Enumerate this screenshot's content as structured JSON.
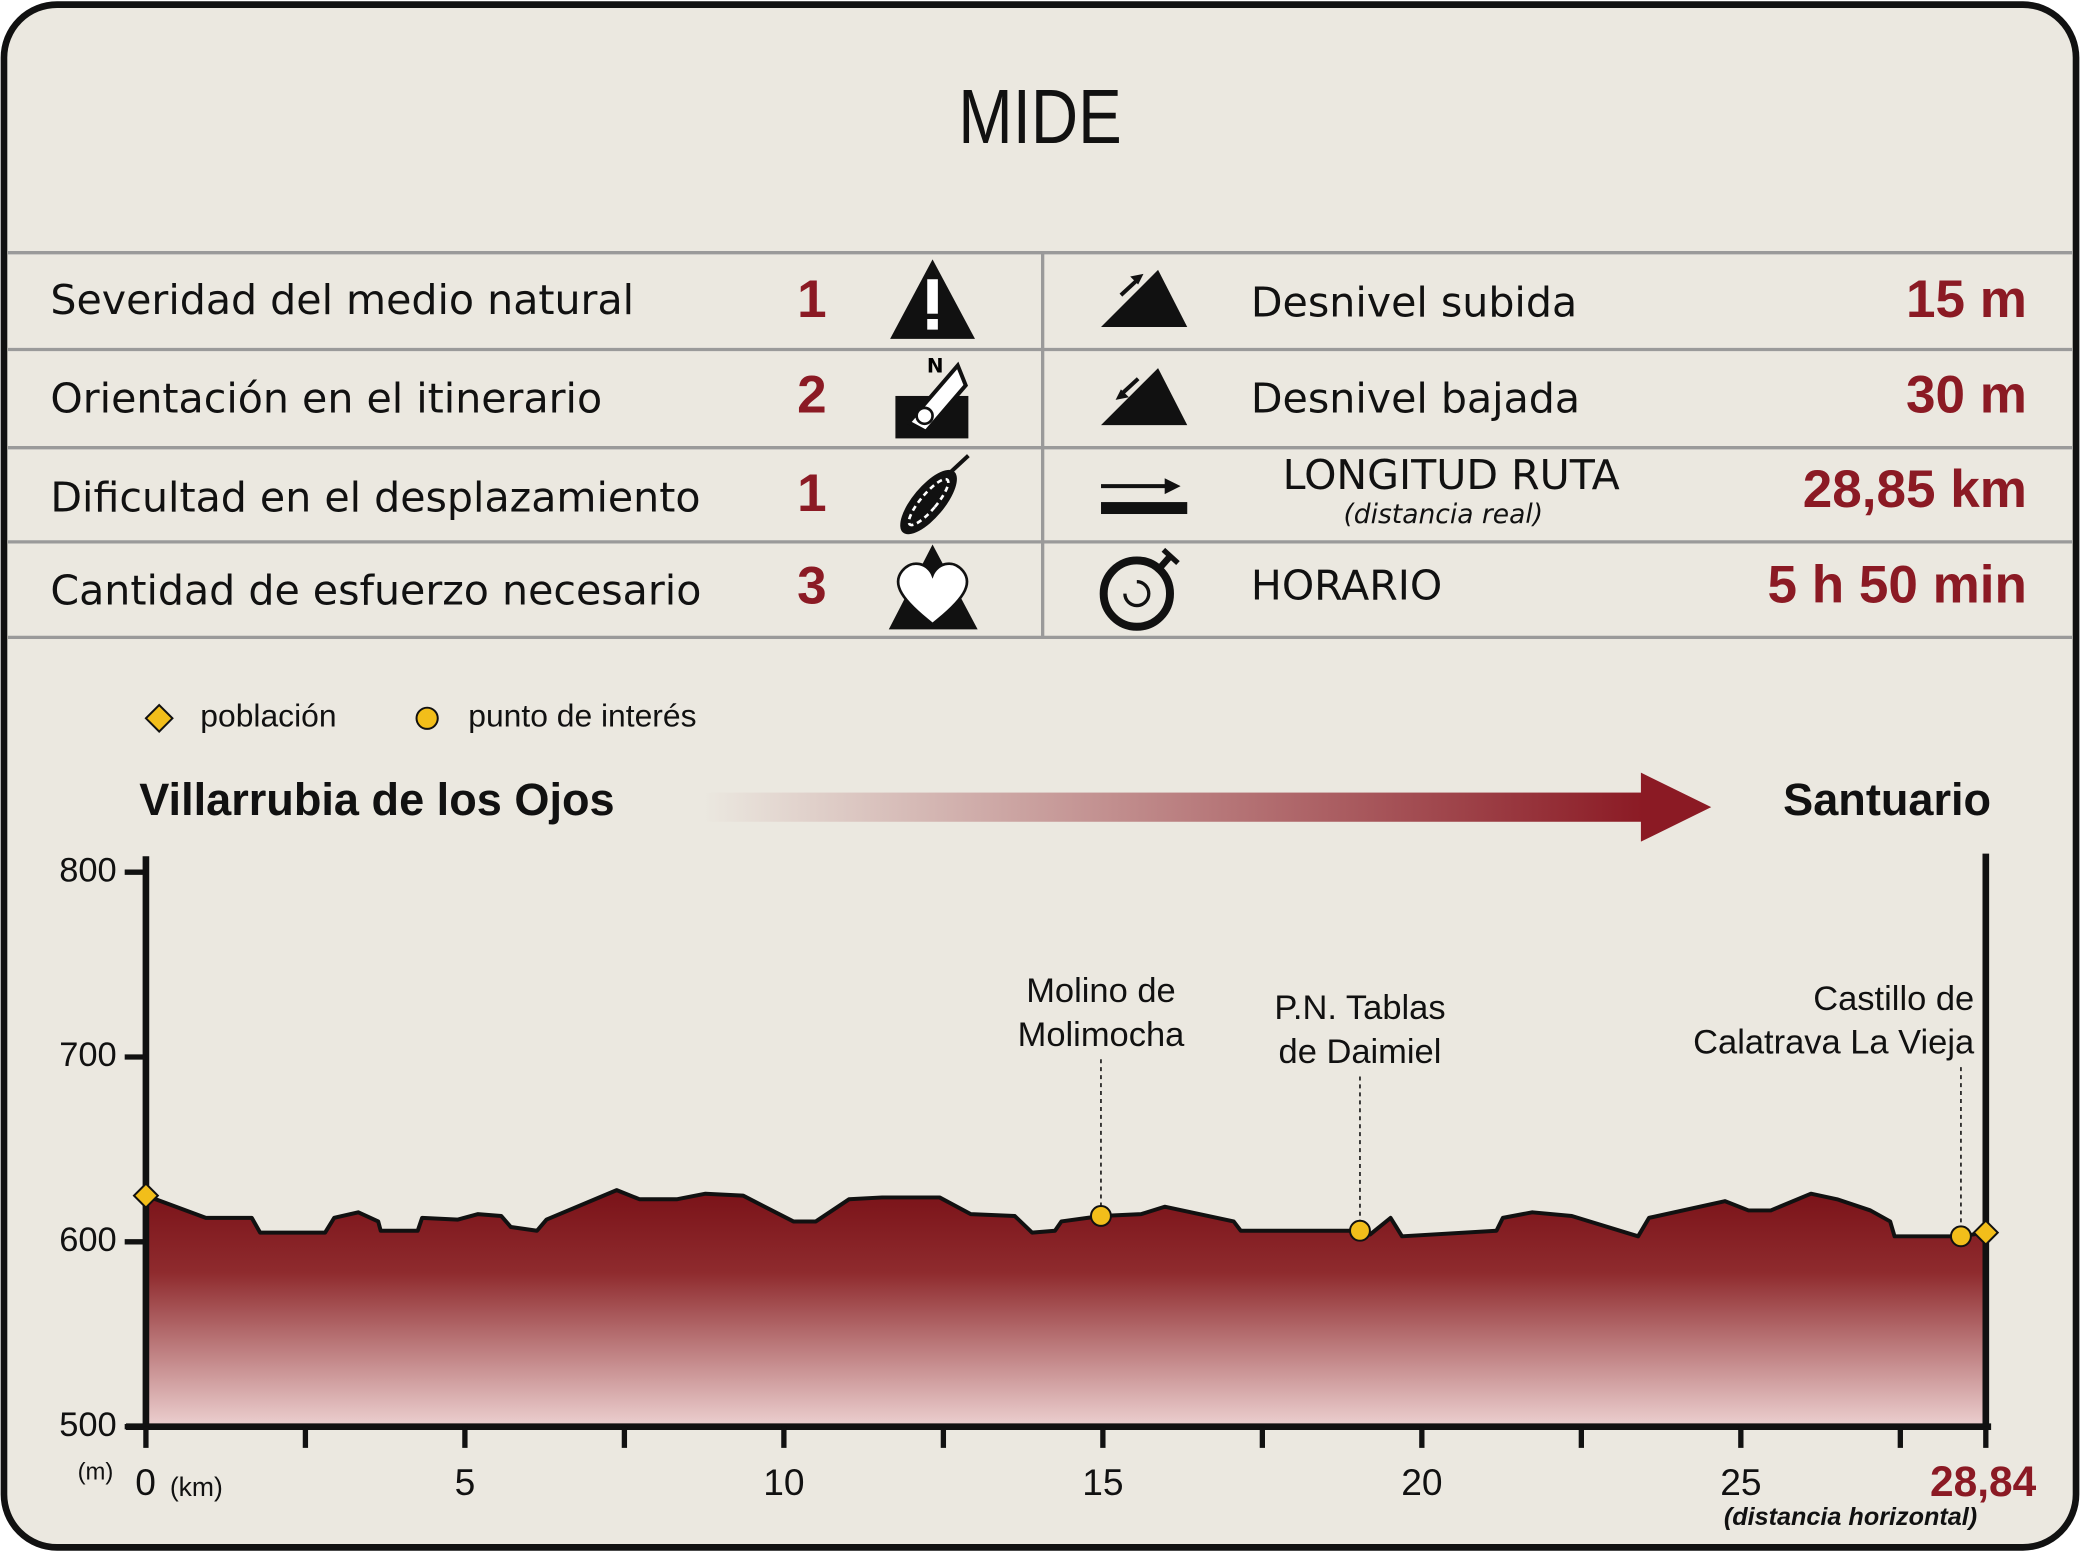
{
  "title": "MIDE",
  "mide": [
    {
      "label": "Severidad del medio natural",
      "value": 1
    },
    {
      "label": "Orientación en el itinerario",
      "value": 2
    },
    {
      "label": "Dificultad en el desplazamiento",
      "value": 1
    },
    {
      "label": "Cantidad de esfuerzo necesario",
      "value": 3
    }
  ],
  "stats": [
    {
      "label": "Desnivel subida",
      "value": "15 m"
    },
    {
      "label": "Desnivel bajada",
      "value": "30 m"
    },
    {
      "label": "LONGITUD RUTA",
      "note": "(distancia real)",
      "value": "28,85 km"
    },
    {
      "label": "HORARIO",
      "value": "5 h 50 min"
    }
  ],
  "chart_data": {
    "type": "area",
    "legend": [
      {
        "label": "población",
        "marker": "diamond"
      },
      {
        "label": "punto de interés",
        "marker": "circle"
      }
    ],
    "start": "Villarrubia de los Ojos",
    "end": "Santuario",
    "y_unit": "(m)",
    "x_unit": "(km)",
    "x_note": "(distancia horizontal)",
    "color": "#8b1a24",
    "marker_color": "#f2be1a",
    "x": [
      0,
      0.94,
      1.66,
      1.79,
      2.81,
      2.95,
      3.33,
      3.64,
      3.68,
      4.26,
      4.33,
      4.89,
      5.2,
      5.57,
      5.72,
      6.13,
      6.28,
      7.38,
      7.74,
      8.32,
      8.77,
      9.36,
      10.15,
      10.5,
      11.02,
      11.54,
      12.44,
      12.93,
      13.62,
      13.89,
      14.25,
      14.35,
      14.97,
      15.6,
      15.97,
      17.05,
      17.16,
      19.03,
      19.19,
      19.51,
      19.69,
      21.17,
      21.27,
      21.73,
      22.35,
      23.39,
      23.56,
      24.75,
      25.12,
      25.47,
      26.1,
      26.51,
      27.03,
      27.34,
      27.41,
      28.45,
      28.84
    ],
    "values": [
      625,
      613,
      613,
      605,
      605,
      613,
      616,
      611,
      606,
      606,
      613,
      612,
      615,
      614,
      608,
      606,
      612,
      628,
      623,
      623,
      626,
      625,
      611,
      611,
      623,
      624,
      624,
      615,
      614,
      605,
      606,
      611,
      614,
      615,
      619,
      611,
      606,
      606,
      604,
      613,
      603,
      606,
      613,
      616,
      614,
      603,
      613,
      622,
      617,
      617,
      626,
      623,
      617,
      611,
      603,
      603,
      605
    ],
    "towns": [
      {
        "x": 0,
        "y": 625
      },
      {
        "x": 28.84,
        "y": 605
      }
    ],
    "points": [
      {
        "lines": [
          "Molino de",
          "Molimocha"
        ],
        "x": 14.97,
        "y": 614
      },
      {
        "lines": [
          "P.N. Tablas",
          "de Daimiel"
        ],
        "x": 19.03,
        "y": 606
      },
      {
        "lines": [
          "Castillo de",
          "Calatrava La Vieja"
        ],
        "x": 28.45,
        "y": 603
      }
    ],
    "xlim": [
      0,
      28.84
    ],
    "ylim": [
      500,
      800
    ],
    "xticks": [
      0,
      5,
      10,
      15,
      20,
      25,
      {
        "value": 28.84,
        "label": "28,84"
      }
    ],
    "xminorticks": [
      2.5,
      7.5,
      12.5,
      17.5,
      22.5,
      27.5
    ],
    "yticks": [
      500,
      600,
      700,
      800
    ]
  }
}
